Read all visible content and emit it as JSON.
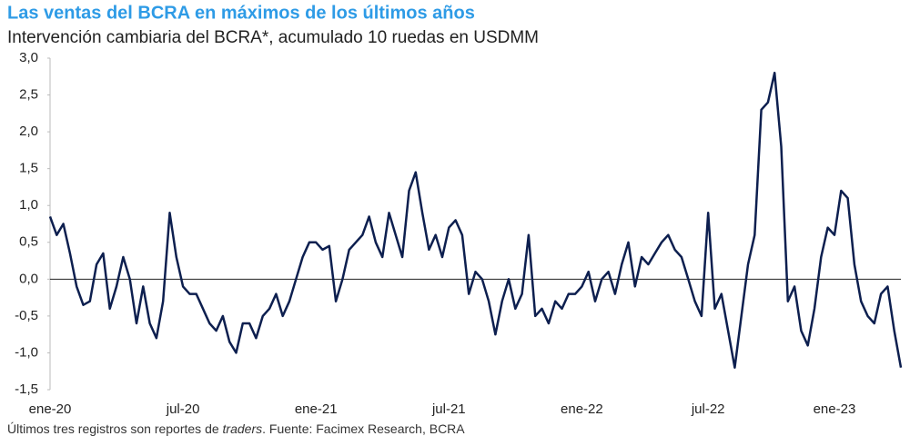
{
  "chart_data": {
    "type": "line",
    "title": "Las ventas del BCRA en máximos de los últimos años",
    "subtitle": "Intervención cambiaria del BCRA*, acumulado 10 ruedas en USDMM",
    "footnote": [
      "Últimos tres registros son reportes de ",
      "traders",
      ". Fuente: Facimex Research, BCRA"
    ],
    "categories": [
      "ene-20",
      null,
      null,
      null,
      null,
      null,
      null,
      null,
      null,
      null,
      null,
      null,
      null,
      null,
      null,
      null,
      null,
      null,
      null,
      null,
      "jul-20",
      null,
      null,
      null,
      null,
      null,
      null,
      null,
      null,
      null,
      null,
      null,
      null,
      null,
      null,
      null,
      null,
      null,
      null,
      null,
      "ene-21",
      null,
      null,
      null,
      null,
      null,
      null,
      null,
      null,
      null,
      null,
      null,
      null,
      null,
      null,
      null,
      null,
      null,
      null,
      null,
      "jul-21",
      null,
      null,
      null,
      null,
      null,
      null,
      null,
      null,
      null,
      null,
      null,
      null,
      null,
      null,
      null,
      null,
      null,
      null,
      null,
      "ene-22",
      null,
      null,
      null,
      null,
      null,
      null,
      null,
      null,
      null,
      null,
      null,
      null,
      null,
      null,
      null,
      null,
      null,
      null,
      "jul-22",
      null,
      null,
      null,
      null,
      null,
      null,
      null,
      null,
      null,
      null,
      null,
      null,
      null,
      null,
      null,
      null,
      null,
      null,
      "ene-23",
      null,
      null,
      null,
      null,
      null,
      null,
      null,
      null,
      null,
      null
    ],
    "series": [
      {
        "name": "Intervención cambiaria",
        "color": "#0d1f4f",
        "values": [
          0.85,
          0.6,
          0.75,
          0.35,
          -0.1,
          -0.35,
          -0.3,
          0.2,
          0.35,
          -0.4,
          -0.1,
          0.3,
          0.0,
          -0.6,
          -0.1,
          -0.6,
          -0.8,
          -0.3,
          0.9,
          0.3,
          -0.1,
          -0.2,
          -0.2,
          -0.4,
          -0.6,
          -0.7,
          -0.5,
          -0.85,
          -1.0,
          -0.6,
          -0.6,
          -0.8,
          -0.5,
          -0.4,
          -0.2,
          -0.5,
          -0.3,
          0.0,
          0.3,
          0.5,
          0.5,
          0.4,
          0.45,
          -0.3,
          0.0,
          0.4,
          0.5,
          0.6,
          0.85,
          0.5,
          0.3,
          0.9,
          0.6,
          0.3,
          1.2,
          1.45,
          0.9,
          0.4,
          0.6,
          0.3,
          0.7,
          0.8,
          0.6,
          -0.2,
          0.1,
          0.0,
          -0.3,
          -0.75,
          -0.3,
          0.0,
          -0.4,
          -0.2,
          0.6,
          -0.5,
          -0.4,
          -0.6,
          -0.3,
          -0.4,
          -0.2,
          -0.2,
          -0.1,
          0.1,
          -0.3,
          0.0,
          0.1,
          -0.2,
          0.2,
          0.5,
          -0.1,
          0.3,
          0.2,
          0.35,
          0.5,
          0.6,
          0.4,
          0.3,
          0.0,
          -0.3,
          -0.5,
          0.9,
          -0.4,
          -0.2,
          -0.7,
          -1.2,
          -0.5,
          0.2,
          0.6,
          2.3,
          2.4,
          2.8,
          1.8,
          -0.3,
          -0.1,
          -0.7,
          -0.9,
          -0.4,
          0.3,
          0.7,
          0.6,
          1.2,
          1.1,
          0.2,
          -0.3,
          -0.5,
          -0.6,
          -0.2,
          -0.1,
          -0.7,
          -1.2
        ]
      }
    ],
    "ylim": [
      -1.5,
      3.0
    ],
    "yticks": [
      {
        "value": -1.5,
        "label": "-1,5"
      },
      {
        "value": -1.0,
        "label": "-1,0"
      },
      {
        "value": -0.5,
        "label": "-0,5"
      },
      {
        "value": 0,
        "label": "0,0"
      },
      {
        "value": 0.5,
        "label": "0,5"
      },
      {
        "value": 1.0,
        "label": "1,0"
      },
      {
        "value": 1.5,
        "label": "1,5"
      },
      {
        "value": 2.0,
        "label": "2,0"
      },
      {
        "value": 2.5,
        "label": "2,5"
      },
      {
        "value": 3.0,
        "label": "3,0"
      }
    ],
    "grid": false
  }
}
